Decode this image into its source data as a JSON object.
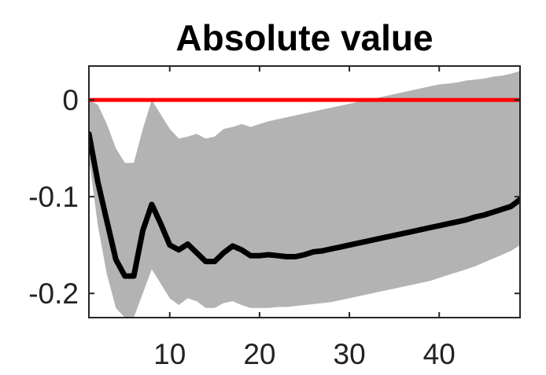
{
  "chart_data": {
    "type": "area",
    "title": "Absolute value",
    "xlabel": "",
    "ylabel": "",
    "xlim": [
      1,
      49
    ],
    "ylim": [
      -0.225,
      0.035
    ],
    "xticks": [
      10,
      20,
      30,
      40
    ],
    "xtick_labels": [
      "10",
      "20",
      "30",
      "40"
    ],
    "yticks": [
      0,
      -0.1,
      -0.2
    ],
    "ytick_labels": [
      "0",
      "-0.1",
      "-0.2"
    ],
    "grid": false,
    "reference_line": {
      "y": 0,
      "color": "#ff0000"
    },
    "x": [
      1,
      2,
      3,
      4,
      5,
      6,
      7,
      8,
      9,
      10,
      11,
      12,
      13,
      14,
      15,
      16,
      17,
      18,
      19,
      20,
      21,
      22,
      23,
      24,
      25,
      26,
      27,
      28,
      29,
      30,
      31,
      32,
      33,
      34,
      35,
      36,
      37,
      38,
      39,
      40,
      41,
      42,
      43,
      44,
      45,
      46,
      47,
      48,
      49
    ],
    "series": [
      {
        "role": "estimate",
        "color": "#000000",
        "values": [
          -0.035,
          -0.085,
          -0.125,
          -0.165,
          -0.182,
          -0.182,
          -0.135,
          -0.108,
          -0.128,
          -0.15,
          -0.155,
          -0.149,
          -0.158,
          -0.167,
          -0.167,
          -0.158,
          -0.151,
          -0.155,
          -0.161,
          -0.161,
          -0.16,
          -0.161,
          -0.162,
          -0.162,
          -0.16,
          -0.157,
          -0.156,
          -0.154,
          -0.152,
          -0.15,
          -0.148,
          -0.146,
          -0.144,
          -0.142,
          -0.14,
          -0.138,
          -0.136,
          -0.134,
          -0.132,
          -0.13,
          -0.128,
          -0.126,
          -0.124,
          -0.121,
          -0.119,
          -0.116,
          -0.113,
          -0.11,
          -0.103
        ]
      },
      {
        "role": "band-upper",
        "color": "#b3b3b3",
        "values": [
          0.0,
          -0.005,
          -0.025,
          -0.05,
          -0.065,
          -0.065,
          -0.03,
          0.0,
          -0.015,
          -0.03,
          -0.04,
          -0.038,
          -0.035,
          -0.04,
          -0.038,
          -0.03,
          -0.028,
          -0.025,
          -0.028,
          -0.025,
          -0.022,
          -0.02,
          -0.018,
          -0.016,
          -0.014,
          -0.012,
          -0.01,
          -0.008,
          -0.006,
          -0.004,
          -0.002,
          0.0,
          0.002,
          0.004,
          0.006,
          0.008,
          0.01,
          0.012,
          0.014,
          0.016,
          0.017,
          0.018,
          0.02,
          0.021,
          0.022,
          0.024,
          0.025,
          0.027,
          0.03
        ]
      },
      {
        "role": "band-lower",
        "color": "#b3b3b3",
        "values": [
          -0.06,
          -0.13,
          -0.18,
          -0.215,
          -0.225,
          -0.225,
          -0.2,
          -0.175,
          -0.19,
          -0.205,
          -0.212,
          -0.205,
          -0.208,
          -0.215,
          -0.215,
          -0.21,
          -0.208,
          -0.212,
          -0.215,
          -0.215,
          -0.215,
          -0.214,
          -0.214,
          -0.213,
          -0.212,
          -0.211,
          -0.21,
          -0.209,
          -0.207,
          -0.205,
          -0.203,
          -0.201,
          -0.199,
          -0.197,
          -0.195,
          -0.193,
          -0.191,
          -0.189,
          -0.187,
          -0.184,
          -0.181,
          -0.178,
          -0.175,
          -0.172,
          -0.168,
          -0.164,
          -0.16,
          -0.156,
          -0.15
        ]
      }
    ]
  }
}
